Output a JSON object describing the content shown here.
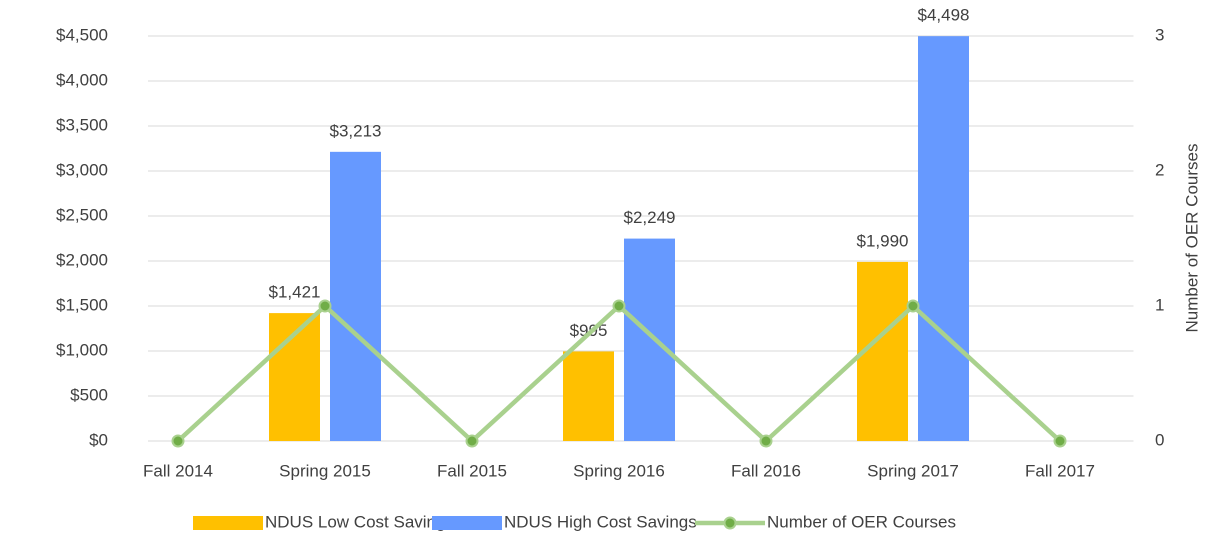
{
  "chart_data": {
    "type": "bar",
    "categories": [
      "Fall 2014",
      "Spring 2015",
      "Fall 2015",
      "Spring 2016",
      "Fall 2016",
      "Spring 2017",
      "Fall 2017"
    ],
    "series": [
      {
        "name": "NDUS Low Cost Savings",
        "color": "#ffc000",
        "type": "bar",
        "values": [
          null,
          1421,
          null,
          995,
          null,
          1990,
          null
        ],
        "value_labels": [
          null,
          "$1,421",
          null,
          "$995",
          null,
          "$1,990",
          null
        ]
      },
      {
        "name": "NDUS High Cost Savings",
        "color": "#6699ff",
        "type": "bar",
        "values": [
          null,
          3213,
          null,
          2249,
          null,
          4498,
          null
        ],
        "value_labels": [
          null,
          "$3,213",
          null,
          "$2,249",
          null,
          "$4,498",
          null
        ]
      },
      {
        "name": "Number of OER Courses",
        "color": "#a9d18e",
        "marker_color": "#70ad47",
        "type": "line",
        "axis": "y2",
        "values": [
          0,
          1,
          0,
          1,
          0,
          1,
          0
        ]
      }
    ],
    "ylim": [
      0,
      4500
    ],
    "yticks": [
      {
        "value": 0,
        "label": "$0"
      },
      {
        "value": 500,
        "label": "$500"
      },
      {
        "value": 1000,
        "label": "$1,000"
      },
      {
        "value": 1500,
        "label": "$1,500"
      },
      {
        "value": 2000,
        "label": "$2,000"
      },
      {
        "value": 2500,
        "label": "$2,500"
      },
      {
        "value": 3000,
        "label": "$3,000"
      },
      {
        "value": 3500,
        "label": "$3,500"
      },
      {
        "value": 4000,
        "label": "$4,000"
      },
      {
        "value": 4500,
        "label": "$4,500"
      }
    ],
    "y2lim": [
      0,
      3
    ],
    "y2ticks": [
      0,
      1,
      2,
      3
    ],
    "y2label": "Number of OER Courses",
    "grid": true,
    "legend": "bottom"
  }
}
